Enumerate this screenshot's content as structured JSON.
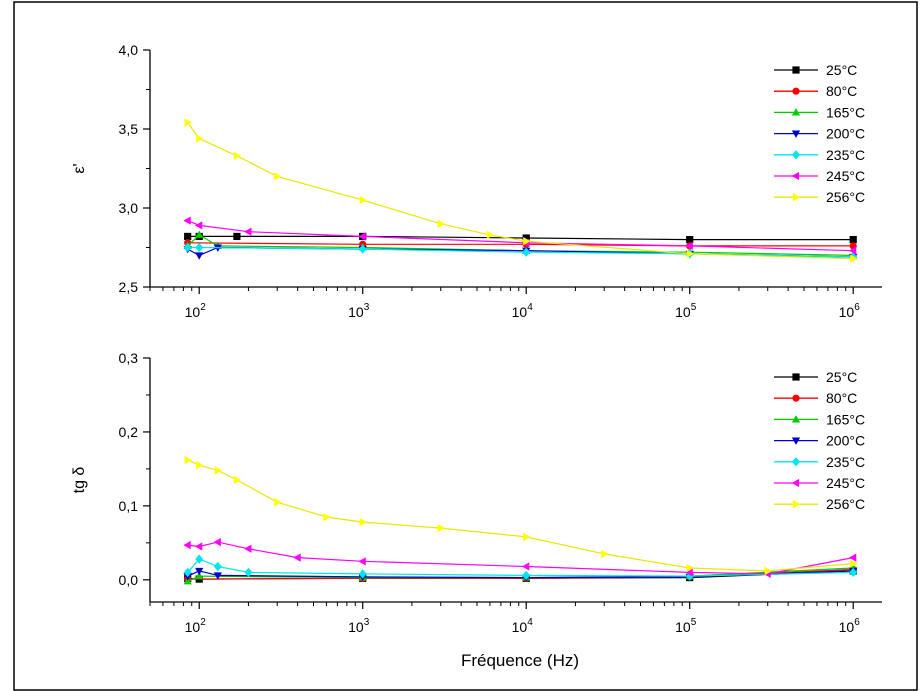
{
  "chart_data": [
    {
      "type": "line",
      "title": "",
      "xlabel": "",
      "ylabel": "ε'",
      "xscale": "log",
      "xlim": [
        50,
        1500000
      ],
      "ylim": [
        2.5,
        4.0
      ],
      "yticks": [
        "2,5",
        "3,0",
        "3,5",
        "4,0"
      ],
      "yticks_values": [
        2.5,
        3.0,
        3.5,
        4.0
      ],
      "xticks": [
        {
          "base": "10",
          "exp": "2",
          "value": 100
        },
        {
          "base": "10",
          "exp": "3",
          "value": 1000
        },
        {
          "base": "10",
          "exp": "4",
          "value": 10000
        },
        {
          "base": "10",
          "exp": "5",
          "value": 100000
        },
        {
          "base": "10",
          "exp": "6",
          "value": 1000000
        }
      ],
      "legend_position": "top-right",
      "series": [
        {
          "name": "25°C",
          "color": "#000000",
          "marker": "square",
          "x": [
            85,
            100,
            170,
            1000,
            10000,
            100000,
            1000000
          ],
          "y": [
            2.82,
            2.82,
            2.82,
            2.82,
            2.81,
            2.8,
            2.8
          ]
        },
        {
          "name": "80°C",
          "color": "#ff0000",
          "marker": "circle",
          "x": [
            85,
            1000,
            10000,
            100000,
            1000000
          ],
          "y": [
            2.78,
            2.77,
            2.77,
            2.76,
            2.76
          ]
        },
        {
          "name": "165°C",
          "color": "#00cc00",
          "marker": "triangle-up",
          "x": [
            85,
            100,
            130,
            1000,
            10000,
            100000,
            1000000
          ],
          "y": [
            2.76,
            2.83,
            2.76,
            2.75,
            2.73,
            2.72,
            2.7
          ]
        },
        {
          "name": "200°C",
          "color": "#0000cc",
          "marker": "triangle-down",
          "x": [
            85,
            100,
            130,
            1000,
            10000,
            100000,
            1000000
          ],
          "y": [
            2.74,
            2.7,
            2.75,
            2.74,
            2.73,
            2.71,
            2.69
          ]
        },
        {
          "name": "235°C",
          "color": "#00e5ee",
          "marker": "diamond",
          "x": [
            85,
            100,
            1000,
            10000,
            100000,
            1000000
          ],
          "y": [
            2.75,
            2.75,
            2.74,
            2.72,
            2.71,
            2.69
          ]
        },
        {
          "name": "245°C",
          "color": "#ff00ff",
          "marker": "triangle-left",
          "x": [
            85,
            100,
            200,
            1000,
            10000,
            100000,
            1000000
          ],
          "y": [
            2.92,
            2.89,
            2.85,
            2.82,
            2.78,
            2.76,
            2.73
          ]
        },
        {
          "name": "256°C",
          "color": "#ffff00",
          "marker": "triangle-right",
          "x": [
            85,
            100,
            170,
            300,
            1000,
            3000,
            6000,
            10000,
            100000,
            1000000
          ],
          "y": [
            3.54,
            3.44,
            3.33,
            3.2,
            3.05,
            2.9,
            2.83,
            2.79,
            2.71,
            2.68
          ]
        }
      ]
    },
    {
      "type": "line",
      "title": "",
      "xlabel": "Fréquence (Hz)",
      "ylabel": "tg δ",
      "xscale": "log",
      "xlim": [
        50,
        1500000
      ],
      "ylim": [
        -0.03,
        0.3
      ],
      "yticks": [
        "0,0",
        "0,1",
        "0,2",
        "0,3"
      ],
      "yticks_values": [
        0.0,
        0.1,
        0.2,
        0.3
      ],
      "xticks": [
        {
          "base": "10",
          "exp": "2",
          "value": 100
        },
        {
          "base": "10",
          "exp": "3",
          "value": 1000
        },
        {
          "base": "10",
          "exp": "4",
          "value": 10000
        },
        {
          "base": "10",
          "exp": "5",
          "value": 100000
        },
        {
          "base": "10",
          "exp": "6",
          "value": 1000000
        }
      ],
      "legend_position": "top-right",
      "series": [
        {
          "name": "25°C",
          "color": "#000000",
          "marker": "square",
          "x": [
            85,
            100,
            1000,
            10000,
            100000,
            1000000
          ],
          "y": [
            0.002,
            0.001,
            0.002,
            0.002,
            0.003,
            0.012
          ]
        },
        {
          "name": "80°C",
          "color": "#ff0000",
          "marker": "circle",
          "x": [
            85,
            1000,
            10000,
            100000,
            1000000
          ],
          "y": [
            0.001,
            0.002,
            0.002,
            0.004,
            0.014
          ]
        },
        {
          "name": "165°C",
          "color": "#00cc00",
          "marker": "triangle-up",
          "x": [
            85,
            100,
            1000,
            10000,
            100000,
            1000000
          ],
          "y": [
            -0.002,
            0.005,
            0.003,
            0.003,
            0.005,
            0.016
          ]
        },
        {
          "name": "200°C",
          "color": "#0000cc",
          "marker": "triangle-down",
          "x": [
            85,
            100,
            130,
            1000,
            10000,
            100000,
            1000000
          ],
          "y": [
            0.005,
            0.012,
            0.006,
            0.004,
            0.003,
            0.004,
            0.012
          ]
        },
        {
          "name": "235°C",
          "color": "#00e5ee",
          "marker": "diamond",
          "x": [
            85,
            100,
            130,
            200,
            1000,
            10000,
            100000,
            1000000
          ],
          "y": [
            0.01,
            0.028,
            0.018,
            0.01,
            0.008,
            0.006,
            0.005,
            0.01
          ]
        },
        {
          "name": "245°C",
          "color": "#ff00ff",
          "marker": "triangle-left",
          "x": [
            85,
            100,
            130,
            200,
            400,
            1000,
            10000,
            100000,
            300000,
            1000000
          ],
          "y": [
            0.047,
            0.045,
            0.051,
            0.042,
            0.03,
            0.025,
            0.018,
            0.01,
            0.008,
            0.03
          ]
        },
        {
          "name": "256°C",
          "color": "#ffff00",
          "marker": "triangle-right",
          "x": [
            85,
            100,
            130,
            170,
            300,
            600,
            1000,
            3000,
            10000,
            30000,
            100000,
            300000,
            1000000
          ],
          "y": [
            0.162,
            0.155,
            0.148,
            0.135,
            0.105,
            0.085,
            0.078,
            0.07,
            0.058,
            0.035,
            0.016,
            0.012,
            0.022
          ]
        }
      ]
    }
  ]
}
